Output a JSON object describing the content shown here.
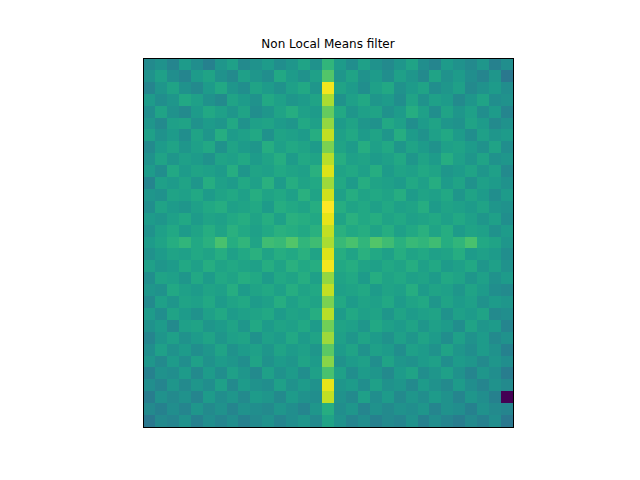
{
  "chart_data": {
    "type": "heatmap",
    "title": "Non Local Means filter",
    "color": "viridis",
    "tick_labels": false,
    "cells": [
      [
        56,
        58,
        55,
        60,
        57,
        54,
        59,
        61,
        56,
        58,
        60,
        57,
        59,
        62,
        58,
        66,
        60,
        57,
        61,
        58,
        56,
        59,
        62,
        57,
        55,
        60,
        58,
        56,
        59,
        54,
        57
      ],
      [
        58,
        61,
        57,
        55,
        60,
        62,
        58,
        56,
        61,
        59,
        57,
        63,
        60,
        58,
        61,
        70,
        59,
        62,
        58,
        60,
        57,
        61,
        59,
        56,
        62,
        58,
        60,
        57,
        55,
        59,
        52
      ],
      [
        55,
        59,
        62,
        58,
        56,
        60,
        63,
        59,
        57,
        62,
        60,
        58,
        61,
        63,
        59,
        84,
        62,
        60,
        57,
        61,
        63,
        58,
        60,
        62,
        57,
        59,
        61,
        56,
        58,
        60,
        57
      ],
      [
        60,
        57,
        59,
        63,
        61,
        58,
        56,
        62,
        60,
        58,
        63,
        61,
        59,
        60,
        62,
        78,
        58,
        61,
        63,
        59,
        60,
        57,
        62,
        58,
        61,
        60,
        56,
        59,
        62,
        57,
        58
      ],
      [
        57,
        62,
        58,
        56,
        60,
        63,
        61,
        59,
        62,
        57,
        59,
        62,
        64,
        61,
        60,
        72,
        63,
        59,
        61,
        62,
        58,
        60,
        64,
        61,
        57,
        62,
        59,
        61,
        57,
        60,
        55
      ],
      [
        59,
        56,
        61,
        62,
        58,
        60,
        59,
        63,
        58,
        61,
        62,
        60,
        59,
        63,
        61,
        76,
        60,
        62,
        59,
        58,
        63,
        61,
        57,
        60,
        62,
        59,
        58,
        62,
        60,
        56,
        58
      ],
      [
        61,
        58,
        60,
        57,
        62,
        59,
        64,
        60,
        61,
        63,
        58,
        62,
        61,
        60,
        64,
        80,
        61,
        63,
        60,
        62,
        59,
        64,
        60,
        58,
        61,
        63,
        60,
        57,
        61,
        59,
        60
      ],
      [
        56,
        60,
        62,
        59,
        61,
        63,
        58,
        62,
        60,
        59,
        64,
        61,
        63,
        62,
        60,
        74,
        62,
        60,
        64,
        61,
        63,
        59,
        62,
        60,
        58,
        61,
        62,
        60,
        58,
        62,
        57
      ],
      [
        58,
        62,
        59,
        61,
        60,
        58,
        62,
        61,
        63,
        60,
        62,
        64,
        60,
        63,
        62,
        79,
        64,
        61,
        62,
        60,
        61,
        63,
        59,
        62,
        60,
        64,
        61,
        59,
        62,
        58,
        59
      ],
      [
        60,
        57,
        63,
        60,
        62,
        61,
        60,
        64,
        59,
        62,
        61,
        63,
        62,
        61,
        65,
        82,
        62,
        63,
        61,
        64,
        60,
        62,
        61,
        63,
        62,
        59,
        60,
        62,
        59,
        61,
        56
      ],
      [
        55,
        61,
        60,
        62,
        59,
        64,
        61,
        60,
        63,
        61,
        65,
        60,
        64,
        62,
        63,
        77,
        63,
        60,
        64,
        62,
        61,
        60,
        63,
        61,
        64,
        60,
        62,
        58,
        61,
        60,
        58
      ],
      [
        59,
        58,
        62,
        61,
        63,
        60,
        62,
        63,
        61,
        64,
        62,
        63,
        61,
        65,
        62,
        81,
        61,
        64,
        62,
        63,
        62,
        64,
        60,
        62,
        61,
        63,
        59,
        62,
        60,
        57,
        60
      ],
      [
        57,
        62,
        60,
        59,
        61,
        63,
        64,
        61,
        62,
        63,
        60,
        64,
        63,
        62,
        64,
        85,
        64,
        62,
        63,
        61,
        63,
        61,
        62,
        64,
        60,
        62,
        61,
        60,
        62,
        59,
        58
      ],
      [
        60,
        59,
        61,
        63,
        60,
        62,
        61,
        63,
        64,
        62,
        64,
        61,
        65,
        64,
        63,
        83,
        62,
        65,
        63,
        64,
        62,
        63,
        61,
        62,
        63,
        61,
        63,
        61,
        59,
        61,
        57
      ],
      [
        58,
        61,
        63,
        60,
        62,
        64,
        62,
        65,
        63,
        61,
        63,
        65,
        64,
        63,
        65,
        80,
        65,
        63,
        64,
        62,
        64,
        61,
        63,
        65,
        62,
        64,
        60,
        62,
        61,
        58,
        60
      ],
      [
        60,
        62,
        64,
        66,
        63,
        65,
        69,
        64,
        66,
        62,
        68,
        67,
        70,
        66,
        68,
        78,
        67,
        69,
        66,
        70,
        68,
        65,
        67,
        66,
        68,
        64,
        66,
        69,
        63,
        62,
        59
      ],
      [
        58,
        60,
        62,
        61,
        63,
        62,
        64,
        61,
        63,
        65,
        62,
        64,
        63,
        65,
        62,
        82,
        64,
        62,
        65,
        63,
        61,
        64,
        62,
        63,
        61,
        62,
        64,
        60,
        61,
        60,
        57
      ],
      [
        61,
        59,
        60,
        63,
        61,
        64,
        62,
        63,
        62,
        61,
        64,
        62,
        65,
        63,
        64,
        84,
        63,
        64,
        62,
        61,
        63,
        62,
        64,
        61,
        63,
        60,
        61,
        63,
        59,
        61,
        58
      ],
      [
        57,
        62,
        61,
        59,
        63,
        60,
        63,
        62,
        64,
        63,
        60,
        63,
        62,
        64,
        61,
        76,
        62,
        63,
        60,
        64,
        62,
        63,
        61,
        62,
        60,
        63,
        62,
        59,
        61,
        58,
        60
      ],
      [
        59,
        58,
        63,
        61,
        60,
        62,
        61,
        64,
        60,
        62,
        63,
        61,
        64,
        62,
        63,
        80,
        61,
        62,
        63,
        60,
        62,
        61,
        64,
        60,
        62,
        61,
        59,
        62,
        60,
        57,
        56
      ],
      [
        56,
        61,
        59,
        62,
        61,
        63,
        60,
        62,
        63,
        60,
        61,
        64,
        61,
        63,
        62,
        74,
        63,
        60,
        62,
        61,
        63,
        60,
        62,
        63,
        59,
        62,
        60,
        61,
        58,
        60,
        59
      ],
      [
        60,
        57,
        62,
        60,
        58,
        61,
        63,
        60,
        61,
        62,
        63,
        60,
        62,
        61,
        64,
        79,
        60,
        63,
        61,
        62,
        59,
        62,
        60,
        61,
        62,
        58,
        61,
        60,
        62,
        56,
        57
      ],
      [
        58,
        60,
        56,
        61,
        62,
        59,
        60,
        62,
        59,
        63,
        60,
        62,
        61,
        63,
        60,
        73,
        62,
        61,
        59,
        63,
        61,
        60,
        62,
        59,
        61,
        60,
        57,
        62,
        59,
        60,
        55
      ],
      [
        55,
        59,
        61,
        58,
        60,
        62,
        59,
        61,
        62,
        58,
        61,
        60,
        63,
        60,
        62,
        77,
        61,
        59,
        62,
        60,
        58,
        61,
        59,
        62,
        60,
        57,
        61,
        58,
        60,
        56,
        58
      ],
      [
        57,
        61,
        58,
        60,
        57,
        59,
        62,
        58,
        60,
        61,
        59,
        62,
        60,
        61,
        59,
        71,
        60,
        62,
        58,
        61,
        60,
        57,
        61,
        60,
        58,
        62,
        59,
        57,
        60,
        58,
        54
      ],
      [
        59,
        56,
        60,
        57,
        61,
        58,
        60,
        59,
        57,
        62,
        58,
        60,
        59,
        62,
        60,
        75,
        58,
        60,
        61,
        57,
        62,
        59,
        58,
        60,
        61,
        57,
        60,
        59,
        56,
        59,
        57
      ],
      [
        54,
        58,
        57,
        60,
        56,
        60,
        57,
        61,
        59,
        56,
        61,
        58,
        60,
        57,
        61,
        69,
        61,
        57,
        60,
        59,
        56,
        60,
        62,
        57,
        59,
        61,
        58,
        55,
        59,
        57,
        53
      ],
      [
        57,
        55,
        59,
        56,
        59,
        57,
        61,
        56,
        60,
        58,
        57,
        61,
        58,
        60,
        58,
        83,
        59,
        60,
        57,
        61,
        58,
        59,
        56,
        60,
        58,
        56,
        60,
        57,
        55,
        58,
        56
      ],
      [
        53,
        58,
        56,
        58,
        55,
        60,
        57,
        59,
        56,
        60,
        59,
        56,
        60,
        58,
        57,
        80,
        58,
        56,
        61,
        57,
        60,
        56,
        59,
        57,
        60,
        58,
        55,
        59,
        57,
        54,
        30
      ],
      [
        56,
        54,
        57,
        55,
        59,
        56,
        58,
        55,
        58,
        57,
        56,
        59,
        57,
        55,
        59,
        64,
        57,
        59,
        55,
        58,
        56,
        58,
        57,
        59,
        55,
        58,
        57,
        54,
        58,
        56,
        55
      ],
      [
        52,
        56,
        55,
        58,
        54,
        57,
        55,
        57,
        54,
        56,
        58,
        55,
        57,
        59,
        56,
        62,
        58,
        55,
        57,
        54,
        56,
        55,
        58,
        54,
        57,
        55,
        53,
        56,
        54,
        57,
        52
      ]
    ]
  }
}
